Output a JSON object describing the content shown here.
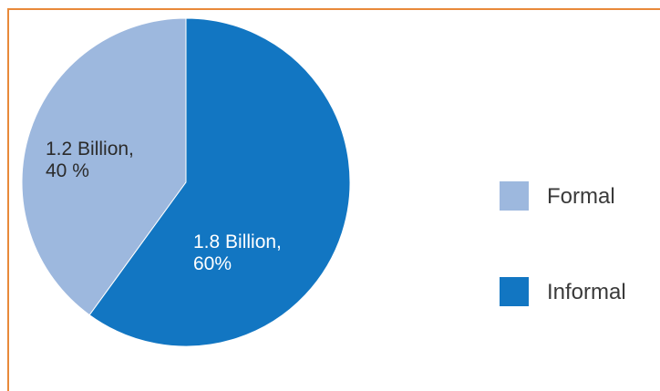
{
  "chart_data": {
    "type": "pie",
    "categories": [
      "Formal",
      "Informal"
    ],
    "values": [
      40,
      60
    ],
    "slice_labels": [
      [
        "1.2 Billion,",
        "40 %"
      ],
      [
        "1.8 Billion,",
        "60%"
      ]
    ],
    "colors": [
      "#9db8de",
      "#1276c2"
    ],
    "label_colors": [
      "#2b2b2b",
      "#ffffff"
    ],
    "legend": {
      "placement": "right",
      "entries": [
        "Formal",
        "Informal"
      ]
    }
  }
}
